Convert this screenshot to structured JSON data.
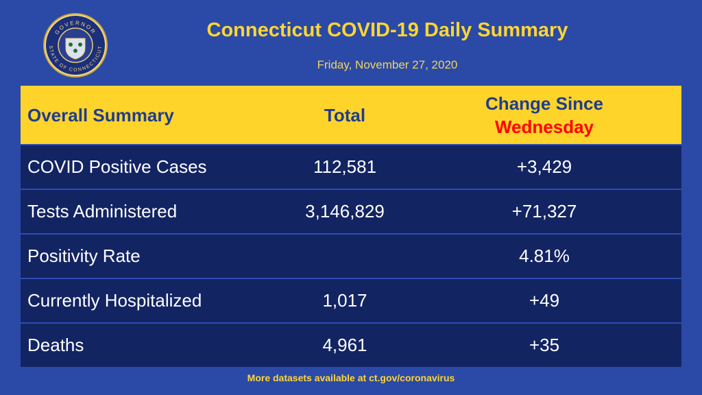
{
  "seal": {
    "top": "GOVERNOR",
    "bottom": "STATE OF CONNECTICUT"
  },
  "header": {
    "title": "Connecticut COVID-19 Daily Summary",
    "date": "Friday, November 27, 2020"
  },
  "table": {
    "columns": [
      "Overall Summary",
      "Total",
      {
        "text": "Change Since",
        "emphasis": "Wednesday"
      }
    ],
    "rows": [
      [
        "COVID Positive Cases",
        "112,581",
        "+3,429"
      ],
      [
        "Tests Administered",
        "3,146,829",
        "+71,327"
      ],
      [
        "Positivity Rate",
        null,
        "4.81%"
      ],
      [
        "Currently Hospitalized",
        "1,017",
        "+49"
      ],
      [
        "Deaths",
        "4,961",
        "+35"
      ]
    ]
  },
  "footer": "More datasets available at ct.gov/coronavirus"
}
